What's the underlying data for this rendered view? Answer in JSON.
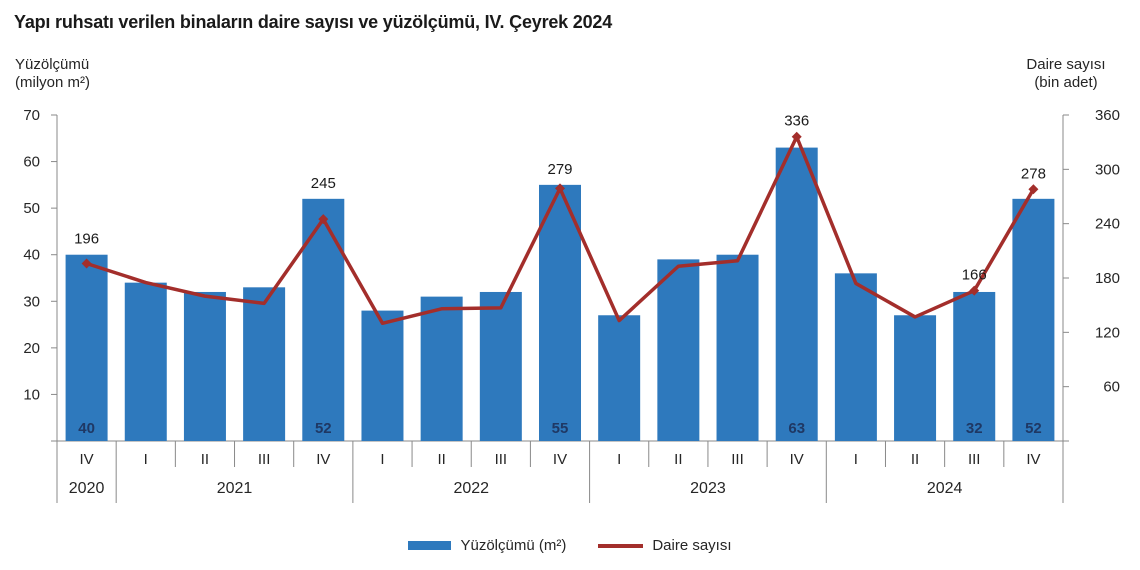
{
  "title": "Yapı ruhsatı verilen binaların daire sayısı ve yüzölçümü, IV. Çeyrek 2024",
  "left_axis_header": {
    "line1": "Yüzölçümü",
    "line2": "(milyon m²)"
  },
  "right_axis_header": {
    "line1": "Daire sayısı",
    "line2": "(bin adet)"
  },
  "colors": {
    "bar": "#2E79BD",
    "line": "#A32E2B",
    "bar_label": "#1F3864",
    "axis": "#898989"
  },
  "legend": [
    {
      "label": "Yüzölçümü (m²)",
      "type": "bar"
    },
    {
      "label": "Daire sayısı",
      "type": "line"
    }
  ],
  "chart_data": {
    "type": "bar+line combo",
    "title": "Yapı ruhsatı verilen binaların daire sayısı ve yüzölçümü, IV. Çeyrek 2024",
    "grid": "off",
    "legend_position": "bottom-center",
    "quarters": [
      "IV",
      "I",
      "II",
      "III",
      "IV",
      "I",
      "II",
      "III",
      "IV",
      "I",
      "II",
      "III",
      "IV",
      "I",
      "II",
      "III",
      "IV"
    ],
    "year_groups": [
      {
        "label": "2020",
        "span": 1
      },
      {
        "label": "2021",
        "span": 4
      },
      {
        "label": "2022",
        "span": 4
      },
      {
        "label": "2023",
        "span": 4
      },
      {
        "label": "2024",
        "span": 4
      }
    ],
    "left_axis": {
      "label": "Yüzölçümü (milyon m²)",
      "min": 0,
      "max": 70,
      "ticks": [
        70,
        60,
        50,
        40,
        30,
        20,
        10
      ]
    },
    "right_axis": {
      "label": "Daire sayısı (bin adet)",
      "min": 0,
      "max": 360,
      "ticks": [
        360,
        300,
        240,
        180,
        120,
        60
      ]
    },
    "series": [
      {
        "name": "Yüzölçümü (m²)",
        "type": "bar",
        "axis": "left",
        "values": [
          40,
          34,
          32,
          33,
          52,
          28,
          31,
          32,
          55,
          27,
          39,
          40,
          63,
          36,
          27,
          32,
          52
        ],
        "value_labels": [
          {
            "index": 0,
            "text": "40"
          },
          {
            "index": 4,
            "text": "52"
          },
          {
            "index": 8,
            "text": "55"
          },
          {
            "index": 12,
            "text": "63"
          },
          {
            "index": 15,
            "text": "32"
          },
          {
            "index": 16,
            "text": "52"
          }
        ]
      },
      {
        "name": "Daire sayısı",
        "type": "line",
        "axis": "right",
        "values": [
          196,
          175,
          160,
          152,
          245,
          130,
          146,
          147,
          279,
          133,
          193,
          199,
          336,
          174,
          137,
          166,
          278
        ],
        "value_labels": [
          {
            "index": 0,
            "text": "196"
          },
          {
            "index": 4,
            "text": "245"
          },
          {
            "index": 8,
            "text": "279"
          },
          {
            "index": 12,
            "text": "336"
          },
          {
            "index": 15,
            "text": "166"
          },
          {
            "index": 16,
            "text": "278"
          }
        ]
      }
    ]
  }
}
